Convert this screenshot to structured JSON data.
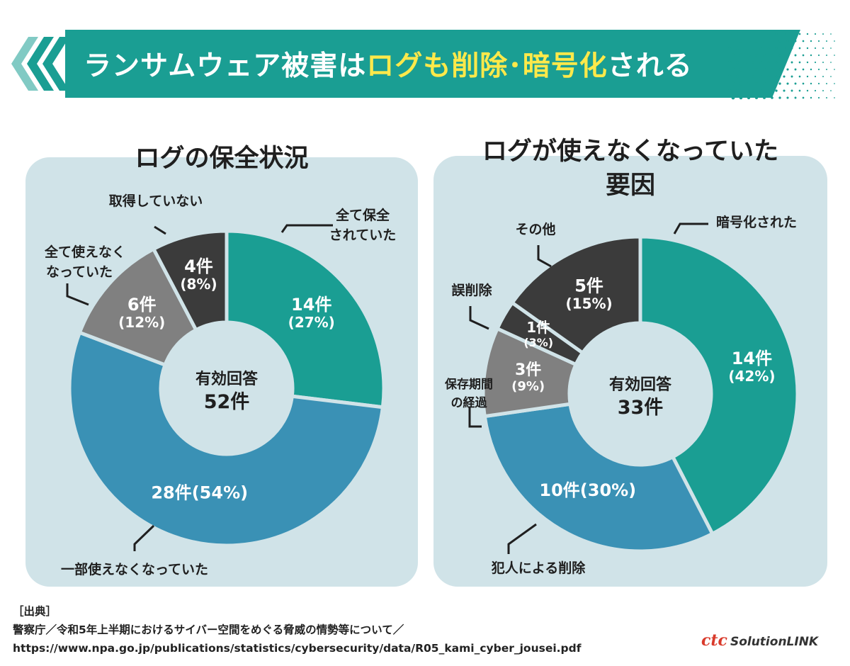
{
  "header": {
    "title_prefix": "ランサムウェア被害は",
    "title_highlight": "ログも削除･暗号化",
    "title_suffix": "される"
  },
  "colors": {
    "teal": "#1a9e93",
    "blue": "#3a91b5",
    "gray": "#808080",
    "dark": "#3b3b3b",
    "panel_bg": "#d0e3e8",
    "highlight": "#ffe94a"
  },
  "chart_data": [
    {
      "type": "pie",
      "title": "ログの保全状況",
      "center_label": "有効回答",
      "center_value": "52件",
      "total": 52,
      "slices": [
        {
          "label": "全て保全されていた",
          "count": 14,
          "percent": 27,
          "count_text": "14件",
          "percent_text": "(27%)",
          "color": "#1a9e93"
        },
        {
          "label": "一部使えなくなっていた",
          "count": 28,
          "percent": 54,
          "count_text": "28件",
          "percent_text": "(54%)",
          "color": "#3a91b5"
        },
        {
          "label": "全て使えなくなっていた",
          "count": 6,
          "percent": 12,
          "count_text": "6件",
          "percent_text": "(12%)",
          "color": "#808080"
        },
        {
          "label": "取得していない",
          "count": 4,
          "percent": 8,
          "count_text": "4件",
          "percent_text": "(8%)",
          "color": "#3b3b3b"
        }
      ]
    },
    {
      "type": "pie",
      "title": "ログが使えなくなっていた要因",
      "center_label": "有効回答",
      "center_value": "33件",
      "total": 33,
      "slices": [
        {
          "label": "暗号化された",
          "count": 14,
          "percent": 42,
          "count_text": "14件",
          "percent_text": "(42%)",
          "color": "#1a9e93"
        },
        {
          "label": "犯人による削除",
          "count": 10,
          "percent": 30,
          "count_text": "10件",
          "percent_text": "(30%)",
          "color": "#3a91b5"
        },
        {
          "label": "保存期間の経過",
          "count": 3,
          "percent": 9,
          "count_text": "3件",
          "percent_text": "(9%)",
          "color": "#808080"
        },
        {
          "label": "誤削除",
          "count": 1,
          "percent": 3,
          "count_text": "1件",
          "percent_text": "(3%)",
          "color": "#3b3b3b"
        },
        {
          "label": "その他",
          "count": 5,
          "percent": 15,
          "count_text": "5件",
          "percent_text": "(15%)",
          "color": "#3b3b3b"
        }
      ]
    }
  ],
  "source": {
    "heading": "［出典］",
    "line1": "警察庁／令和5年上半期におけるサイバー空間をめぐる脅威の情勢等について／",
    "line2": "https://www.npa.go.jp/publications/statistics/cybersecurity/data/R05_kami_cyber_jousei.pdf"
  },
  "logo": {
    "ctc": "ctc",
    "solution": "SolutionLINK"
  }
}
